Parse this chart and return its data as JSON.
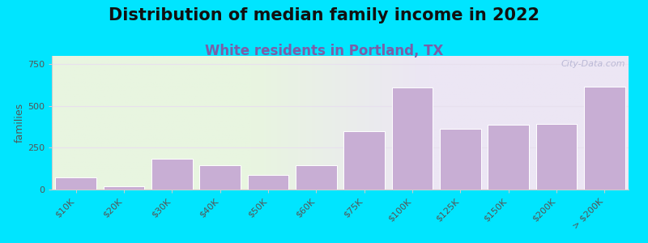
{
  "title": "Distribution of median family income in 2022",
  "subtitle": "White residents in Portland, TX",
  "ylabel": "families",
  "categories": [
    "$10K",
    "$20K",
    "$30K",
    "$40K",
    "$50K",
    "$60K",
    "$75K",
    "$100K",
    "$125K",
    "$150K",
    "$200K",
    "> $200K"
  ],
  "values": [
    75,
    20,
    185,
    145,
    85,
    145,
    350,
    610,
    365,
    390,
    395,
    615
  ],
  "bar_color": "#c8aed4",
  "bar_edge_color": "#ffffff",
  "ylim": [
    0,
    800
  ],
  "yticks": [
    0,
    250,
    500,
    750
  ],
  "background_color": "#00e5ff",
  "title_fontsize": 15,
  "subtitle_fontsize": 12,
  "subtitle_color": "#7b5ea7",
  "watermark": "City-Data.com",
  "grid_color": "#e8e0ee",
  "tick_color": "#555555",
  "tick_fontsize": 8
}
